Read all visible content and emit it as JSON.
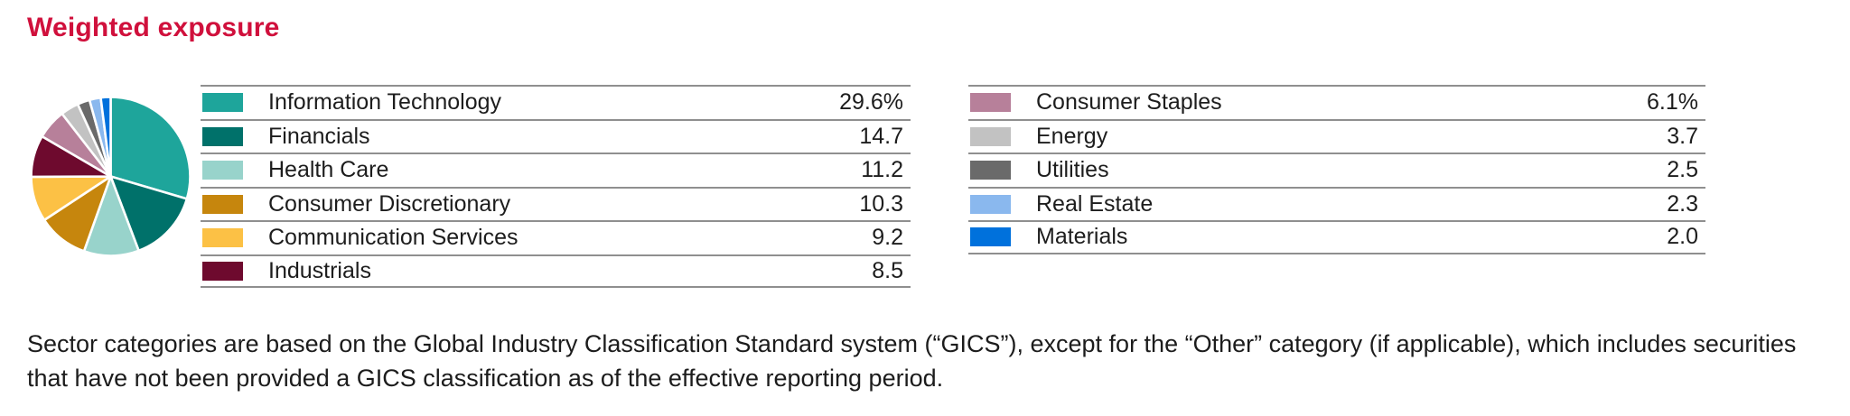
{
  "page": {
    "title": "Weighted exposure",
    "title_color": "#d0103c"
  },
  "chart_data": {
    "type": "pie",
    "title": "Weighted exposure",
    "unit": "%",
    "start_angle": "12-oclock",
    "direction": "clockwise",
    "legend_position": "two-column tables to the right of pie",
    "slices": [
      {
        "label": "Information Technology",
        "value": 29.6,
        "display": "29.6%",
        "color": "#1ea59b"
      },
      {
        "label": "Financials",
        "value": 14.7,
        "display": "14.7",
        "color": "#00716a"
      },
      {
        "label": "Health Care",
        "value": 11.2,
        "display": "11.2",
        "color": "#98d3cb"
      },
      {
        "label": "Consumer Discretionary",
        "value": 10.3,
        "display": "10.3",
        "color": "#c6860d"
      },
      {
        "label": "Communication Services",
        "value": 9.2,
        "display": "9.2",
        "color": "#fcc145"
      },
      {
        "label": "Industrials",
        "value": 8.5,
        "display": "8.5",
        "color": "#6e0a2e"
      },
      {
        "label": "Consumer Staples",
        "value": 6.1,
        "display": "6.1%",
        "color": "#b7809a"
      },
      {
        "label": "Energy",
        "value": 3.7,
        "display": "3.7",
        "color": "#c2c2c2"
      },
      {
        "label": "Utilities",
        "value": 2.5,
        "display": "2.5",
        "color": "#6a6a6a"
      },
      {
        "label": "Real Estate",
        "value": 2.3,
        "display": "2.3",
        "color": "#8ab8ee"
      },
      {
        "label": "Materials",
        "value": 2.0,
        "display": "2.0",
        "color": "#0071dc"
      }
    ]
  },
  "footnote": {
    "lines": [
      "Sector categories are based on the Global Industry Classification Standard system (“GICS”), except for the “Other” category (if applicable), which includes securities",
      "that have not been provided a GICS classification as of the effective reporting period."
    ]
  }
}
